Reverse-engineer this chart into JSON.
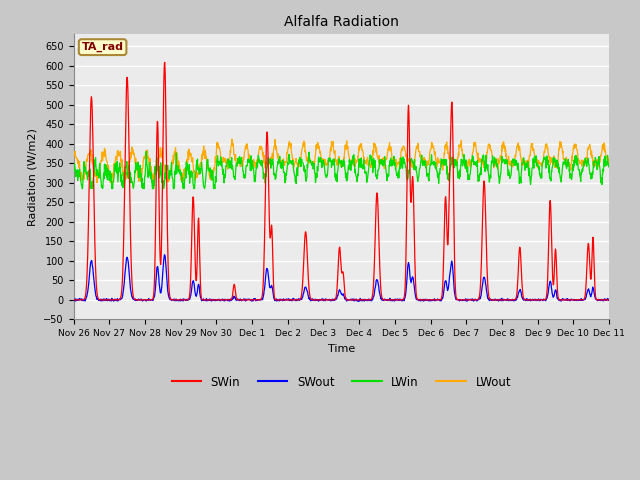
{
  "title": "Alfalfa Radiation",
  "xlabel": "Time",
  "ylabel": "Radiation (W/m2)",
  "ylim": [
    -50,
    680
  ],
  "yticks": [
    -50,
    0,
    50,
    100,
    150,
    200,
    250,
    300,
    350,
    400,
    450,
    500,
    550,
    600,
    650
  ],
  "annotation_text": "TA_rad",
  "annotation_bg": "#ffffcc",
  "annotation_border": "#aa8833",
  "annotation_text_color": "#800000",
  "line_colors": {
    "SWin": "#ff0000",
    "SWout": "#0000ff",
    "LWin": "#00dd00",
    "LWout": "#ffaa00"
  },
  "fig_bg_color": "#c8c8c8",
  "plot_bg_color": "#ebebeb",
  "grid_color": "#ffffff",
  "x_tick_labels": [
    "Nov 26",
    "Nov 27",
    "Nov 28",
    "Nov 29",
    "Nov 30",
    "Dec 1",
    "Dec 2",
    "Dec 3",
    "Dec 4",
    "Dec 5",
    "Dec 6",
    "Dec 7",
    "Dec 8",
    "Dec 9",
    "Dec 10",
    "Dec 11"
  ],
  "num_days": 15,
  "points_per_day": 96
}
